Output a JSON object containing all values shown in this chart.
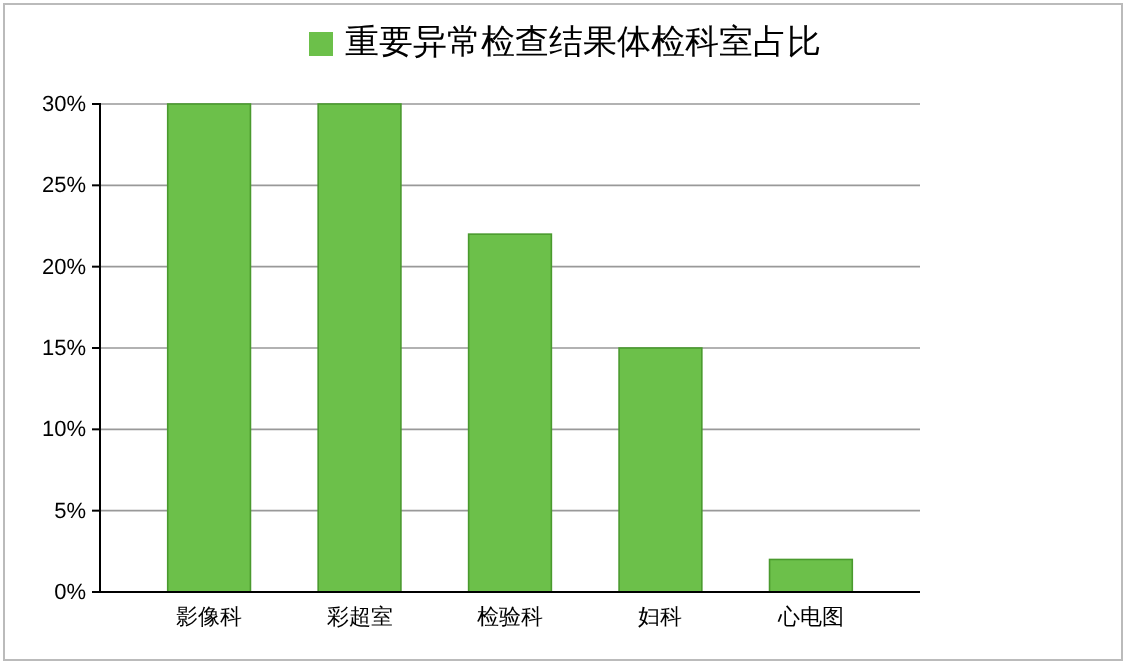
{
  "chart_data": {
    "type": "bar",
    "categories": [
      "影像科",
      "彩超室",
      "检验科",
      "妇科",
      "心电图"
    ],
    "series": [
      {
        "name": "重要异常检查结果体检科室占比",
        "color": "#6cc04a",
        "values": [
          30,
          30,
          22,
          15,
          2
        ]
      }
    ],
    "ylim": [
      0,
      30
    ],
    "yticks": [
      {
        "value": 0,
        "label": "0%"
      },
      {
        "value": 5,
        "label": "5%"
      },
      {
        "value": 10,
        "label": "10%"
      },
      {
        "value": 15,
        "label": "15%"
      },
      {
        "value": 20,
        "label": "20%"
      },
      {
        "value": 25,
        "label": "25%"
      },
      {
        "value": 30,
        "label": "30%"
      }
    ],
    "grid": "y",
    "legend": "top"
  }
}
